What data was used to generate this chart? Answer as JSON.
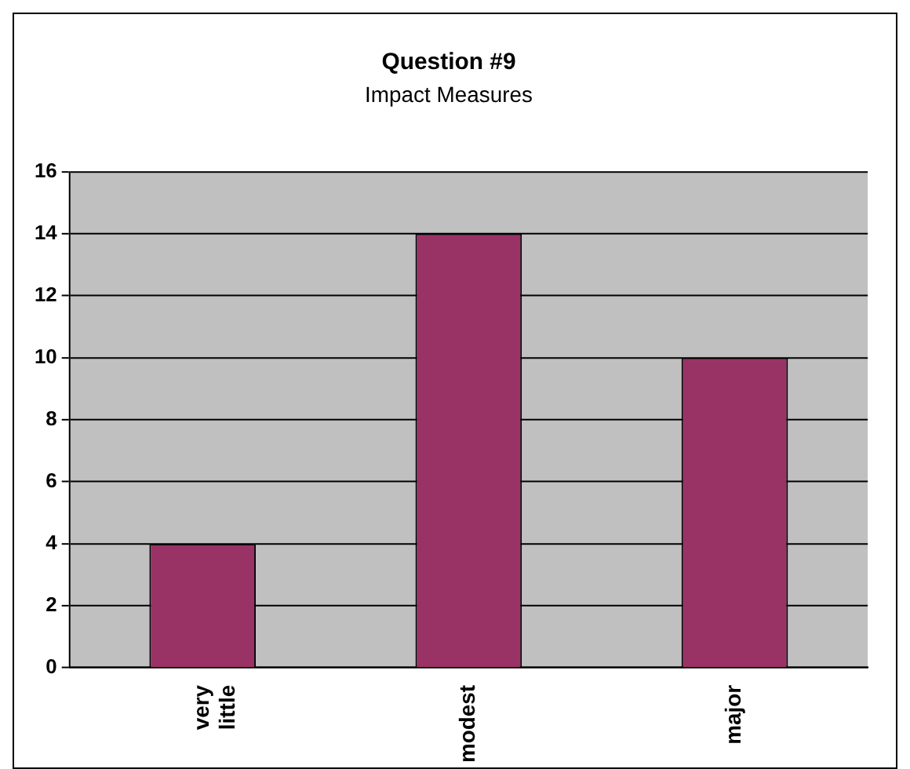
{
  "chart_data": {
    "type": "bar",
    "title": "Question #9",
    "subtitle": "Impact Measures",
    "categories": [
      "very little",
      "modest",
      "major"
    ],
    "values": [
      4,
      14,
      10
    ],
    "color": "#993366",
    "ylim": [
      0,
      16
    ],
    "yticks": [
      0,
      2,
      4,
      6,
      8,
      10,
      12,
      14,
      16
    ],
    "grid": "y",
    "legend": false
  }
}
